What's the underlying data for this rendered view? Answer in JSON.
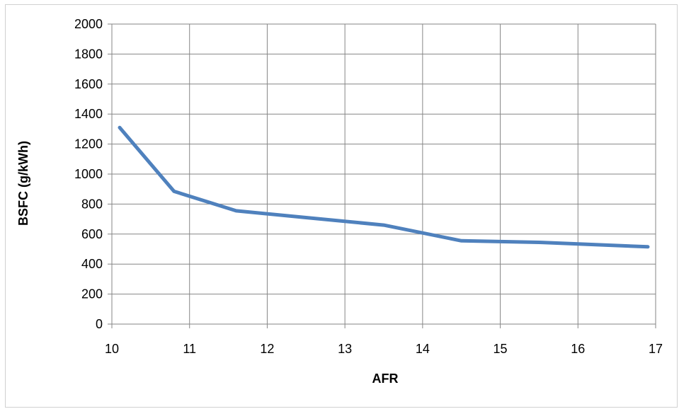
{
  "chart_data": {
    "type": "line",
    "title": "",
    "xlabel": "AFR",
    "ylabel": "BSFC (g/kWh)",
    "xlim": [
      10,
      17
    ],
    "ylim": [
      0,
      2000
    ],
    "xticks": [
      10,
      11,
      12,
      13,
      14,
      15,
      16,
      17
    ],
    "yticks": [
      0,
      200,
      400,
      600,
      800,
      1000,
      1200,
      1400,
      1600,
      1800,
      2000
    ],
    "grid": true,
    "legend": "none",
    "series": [
      {
        "color": "#4f81bd",
        "x": [
          10.1,
          10.8,
          11.6,
          12.5,
          13.5,
          14.5,
          15.5,
          16.9
        ],
        "y": [
          1310,
          885,
          755,
          710,
          660,
          555,
          545,
          515
        ]
      }
    ]
  }
}
